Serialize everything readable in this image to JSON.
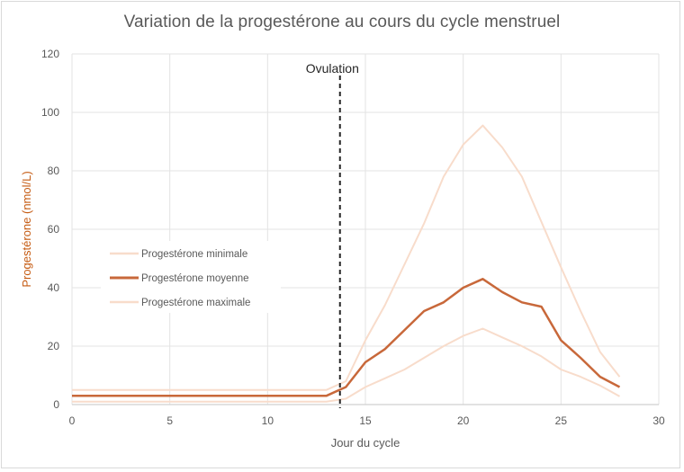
{
  "chart_data": {
    "type": "line",
    "title": "Variation de la progestérone au cours du cycle menstruel",
    "xlabel": "Jour du cycle",
    "ylabel": "Progestérone (nmol/L)",
    "xlim": [
      0,
      30
    ],
    "ylim": [
      0,
      120
    ],
    "xticks": [
      0,
      5,
      10,
      15,
      20,
      25,
      30
    ],
    "yticks": [
      0,
      20,
      40,
      60,
      80,
      100,
      120
    ],
    "grid": true,
    "legend_position": "inside-left-middle",
    "annotations": [
      {
        "type": "vline",
        "x": 13.7,
        "style": "dashed",
        "color": "#262626",
        "label": "Ovulation"
      }
    ],
    "series": [
      {
        "name": "Progestérone minimale",
        "color": "#f8dccb",
        "width": 2,
        "x": [
          0,
          13,
          14,
          15,
          16,
          17,
          18,
          19,
          20,
          21,
          22,
          23,
          24,
          25,
          26,
          27,
          28
        ],
        "values": [
          1,
          1,
          2,
          6,
          9,
          12,
          16,
          20,
          23.5,
          26,
          23,
          20,
          16.5,
          12,
          9.5,
          6.5,
          2.8
        ]
      },
      {
        "name": "Progestérone moyenne",
        "color": "#c8683a",
        "width": 2.5,
        "x": [
          0,
          13,
          14,
          15,
          16,
          17,
          18,
          19,
          20,
          21,
          22,
          23,
          24,
          25,
          26,
          27,
          28
        ],
        "values": [
          3,
          3,
          6,
          14.5,
          19,
          25.5,
          32,
          35,
          40,
          43,
          38.5,
          35,
          33.5,
          22,
          16,
          9.5,
          6
        ]
      },
      {
        "name": "Progestérone maximale",
        "color": "#f8dccb",
        "width": 2,
        "x": [
          0,
          13,
          14,
          15,
          16,
          17,
          18,
          19,
          20,
          21,
          22,
          23,
          24,
          25,
          26,
          27,
          28
        ],
        "values": [
          5,
          5,
          8,
          22,
          34,
          48,
          62,
          78,
          89,
          95.5,
          88,
          78,
          62.5,
          47,
          32,
          18,
          9.5
        ]
      }
    ]
  }
}
